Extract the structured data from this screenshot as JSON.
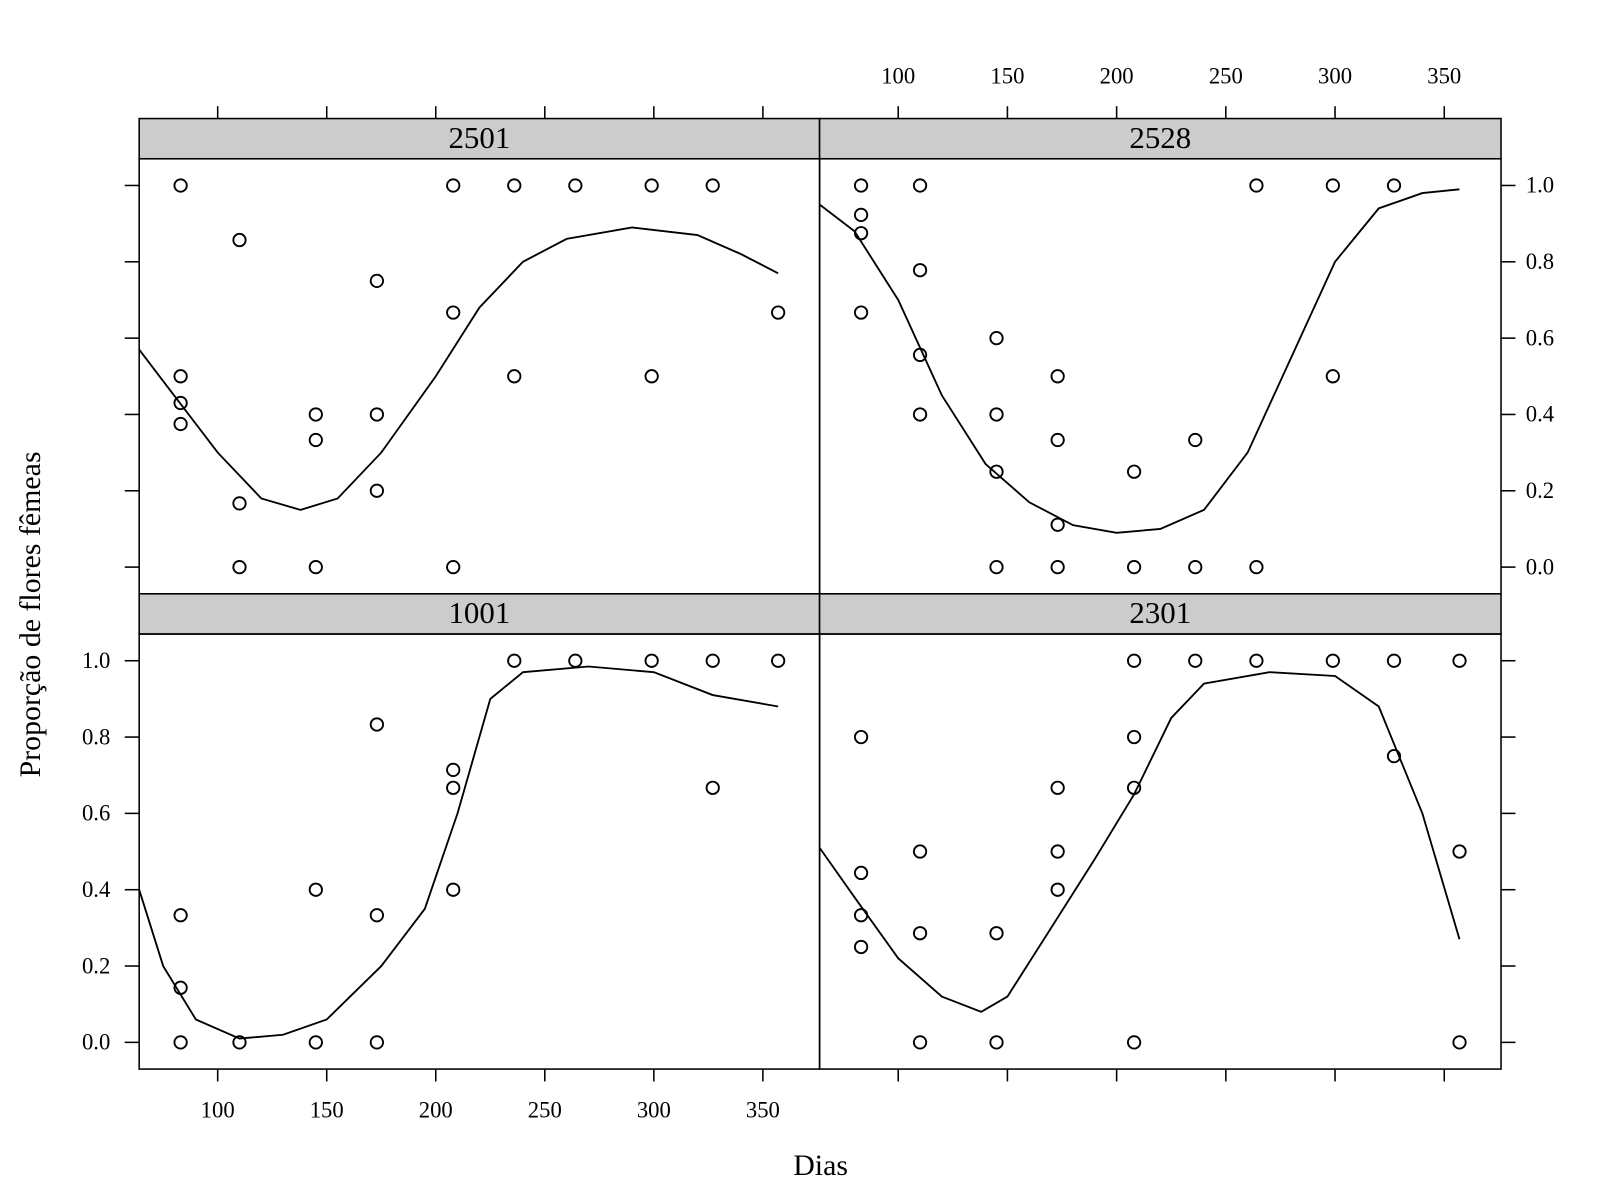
{
  "xlabel": "Dias",
  "ylabel": "Proporção de flores fêmeas",
  "chart_data": [
    {
      "type": "scatter",
      "title": "2501",
      "xaxis": "top",
      "yaxis": "left",
      "axis_labels": false,
      "xlim": [
        64,
        376
      ],
      "ylim": [
        -0.07,
        1.07
      ],
      "xticks": [
        100,
        150,
        200,
        250,
        300,
        350
      ],
      "yticks": [
        {
          "value": 0,
          "label": "0.0"
        },
        0.2,
        0.4,
        0.6,
        0.8,
        {
          "value": 1,
          "label": "1.0"
        }
      ],
      "x": [
        83,
        83,
        83,
        83,
        110,
        110,
        110,
        145,
        145,
        145,
        173,
        173,
        173,
        208,
        208,
        208,
        236,
        236,
        264,
        299,
        299,
        327,
        357
      ],
      "y": [
        1,
        0.5,
        0.43,
        0.375,
        0.857,
        0.167,
        0,
        0.4,
        0.333,
        0,
        0.75,
        0.4,
        0.2,
        1,
        0.667,
        0,
        1,
        0.5,
        1,
        1,
        0.5,
        1,
        0.667
      ],
      "fit": {
        "x": [
          64,
          80,
          100,
          120,
          138,
          155,
          175,
          200,
          220,
          240,
          260,
          290,
          320,
          340,
          357
        ],
        "y": [
          0.57,
          0.45,
          0.3,
          0.18,
          0.15,
          0.18,
          0.3,
          0.5,
          0.68,
          0.8,
          0.86,
          0.89,
          0.87,
          0.82,
          0.77
        ]
      }
    },
    {
      "type": "scatter",
      "title": "2528",
      "xaxis": "top",
      "yaxis": "right",
      "axis_labels": true,
      "xlim": [
        64,
        376
      ],
      "ylim": [
        -0.07,
        1.07
      ],
      "xticks": [
        100,
        150,
        200,
        250,
        300,
        350
      ],
      "yticks": [
        {
          "value": 0,
          "label": "0.0"
        },
        0.2,
        0.4,
        0.6,
        0.8,
        {
          "value": 1,
          "label": "1.0"
        }
      ],
      "x": [
        83,
        83,
        83,
        83,
        110,
        110,
        110,
        110,
        145,
        145,
        145,
        145,
        173,
        173,
        173,
        173,
        208,
        208,
        236,
        236,
        264,
        264,
        299,
        299,
        327
      ],
      "y": [
        1,
        0.923,
        0.875,
        0.667,
        1,
        0.778,
        0.556,
        0.4,
        0.6,
        0.4,
        0.25,
        0,
        0.5,
        0.333,
        0.111,
        0,
        0.25,
        0,
        0.333,
        0,
        1,
        0,
        1,
        0.5,
        1
      ],
      "fit": {
        "x": [
          64,
          80,
          100,
          120,
          140,
          160,
          180,
          200,
          220,
          240,
          260,
          280,
          300,
          320,
          340,
          357
        ],
        "y": [
          0.95,
          0.88,
          0.7,
          0.45,
          0.27,
          0.17,
          0.11,
          0.09,
          0.1,
          0.15,
          0.3,
          0.55,
          0.8,
          0.94,
          0.98,
          0.99
        ]
      }
    },
    {
      "type": "scatter",
      "title": "1001",
      "xaxis": "bottom",
      "yaxis": "left",
      "axis_labels": true,
      "xlim": [
        64,
        376
      ],
      "ylim": [
        -0.07,
        1.07
      ],
      "xticks": [
        100,
        150,
        200,
        250,
        300,
        350
      ],
      "yticks": [
        {
          "value": 0,
          "label": "0.0"
        },
        0.2,
        0.4,
        0.6,
        0.8,
        {
          "value": 1,
          "label": "1.0"
        }
      ],
      "x": [
        83,
        83,
        83,
        110,
        145,
        145,
        173,
        173,
        173,
        208,
        208,
        208,
        236,
        264,
        299,
        327,
        327,
        357
      ],
      "y": [
        0.333,
        0.143,
        0,
        0,
        0.4,
        0,
        0.833,
        0.333,
        0,
        0.714,
        0.667,
        0.4,
        1,
        1,
        1,
        1,
        0.667,
        1
      ],
      "fit": {
        "x": [
          64,
          75,
          90,
          110,
          130,
          150,
          175,
          195,
          210,
          225,
          240,
          270,
          300,
          327,
          357
        ],
        "y": [
          0.4,
          0.2,
          0.06,
          0.01,
          0.02,
          0.06,
          0.2,
          0.35,
          0.6,
          0.9,
          0.97,
          0.985,
          0.97,
          0.91,
          0.88
        ]
      }
    },
    {
      "type": "scatter",
      "title": "2301",
      "xaxis": "bottom",
      "yaxis": "right",
      "axis_labels": false,
      "xlim": [
        64,
        376
      ],
      "ylim": [
        -0.07,
        1.07
      ],
      "xticks": [
        100,
        150,
        200,
        250,
        300,
        350
      ],
      "yticks": [
        {
          "value": 0,
          "label": "0.0"
        },
        0.2,
        0.4,
        0.6,
        0.8,
        {
          "value": 1,
          "label": "1.0"
        }
      ],
      "x": [
        83,
        83,
        83,
        83,
        110,
        110,
        110,
        145,
        145,
        173,
        173,
        173,
        208,
        208,
        208,
        208,
        236,
        264,
        299,
        327,
        327,
        357,
        357,
        357
      ],
      "y": [
        0.8,
        0.444,
        0.333,
        0.25,
        0.5,
        0.286,
        0,
        0.286,
        0,
        0.667,
        0.5,
        0.4,
        1,
        0.8,
        0.667,
        0,
        1,
        1,
        1,
        1,
        0.75,
        1,
        0.5,
        0
      ],
      "fit": {
        "x": [
          64,
          80,
          100,
          120,
          138,
          150,
          170,
          190,
          208,
          225,
          240,
          270,
          300,
          320,
          340,
          357
        ],
        "y": [
          0.51,
          0.38,
          0.22,
          0.12,
          0.08,
          0.12,
          0.3,
          0.48,
          0.65,
          0.85,
          0.94,
          0.97,
          0.96,
          0.88,
          0.6,
          0.27
        ]
      }
    }
  ]
}
